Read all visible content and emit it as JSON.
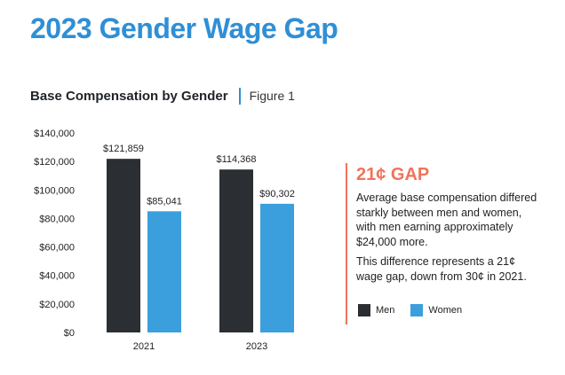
{
  "header": {
    "title": "2023 Gender Wage Gap",
    "subtitle": "Base Compensation by Gender",
    "figure_label": "Figure 1"
  },
  "panel": {
    "headline": "21¢ GAP",
    "paragraph1": "Average base compensation differed starkly between men and women, with men earning approximately $24,000 more.",
    "paragraph2": "This difference represents a 21¢ wage gap, down from 30¢ in 2021."
  },
  "colors": {
    "title": "#2f8fd6",
    "men": "#2b2e33",
    "women": "#3a9fdc",
    "accent": "#f0735c"
  },
  "chart_data": {
    "type": "bar",
    "title": "Base Compensation by Gender",
    "categories": [
      "2021",
      "2023"
    ],
    "series": [
      {
        "name": "Men",
        "values": [
          121859,
          114368
        ],
        "labels": [
          "$121,859",
          "$114,368"
        ]
      },
      {
        "name": "Women",
        "values": [
          85041,
          90302
        ],
        "labels": [
          "$85,041",
          "$90,302"
        ]
      }
    ],
    "ylim": [
      0,
      140000
    ],
    "yticks": [
      0,
      20000,
      40000,
      60000,
      80000,
      100000,
      120000,
      140000
    ],
    "ytick_labels": [
      "$0",
      "$20,000",
      "$40,000",
      "$60,000",
      "$80,000",
      "$100,000",
      "$120,000",
      "$140,000"
    ],
    "xlabel": "",
    "ylabel": "",
    "grid": false,
    "legend": {
      "position": "bottom-right",
      "entries": [
        "Men",
        "Women"
      ]
    }
  }
}
